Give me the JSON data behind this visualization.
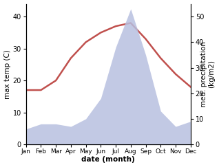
{
  "months": [
    "Jan",
    "Feb",
    "Mar",
    "Apr",
    "May",
    "Jun",
    "Jul",
    "Aug",
    "Sep",
    "Oct",
    "Nov",
    "Dec"
  ],
  "temperature": [
    17,
    17,
    20,
    27,
    32,
    35,
    37,
    38,
    33,
    27,
    22,
    18
  ],
  "precipitation": [
    6,
    8,
    8,
    7,
    10,
    18,
    38,
    53,
    35,
    13,
    7,
    9
  ],
  "temp_color": "#c0504d",
  "precip_fill_color": "#b8c0e0",
  "xlabel": "date (month)",
  "ylabel_left": "max temp (C)",
  "ylabel_right": "med. precipitation\n(kg/m2)",
  "ylim_left": [
    0,
    44
  ],
  "ylim_right": [
    0,
    55
  ],
  "yticks_left": [
    0,
    10,
    20,
    30,
    40
  ],
  "yticks_right": [
    0,
    10,
    20,
    30,
    40,
    50
  ],
  "background_color": "#ffffff",
  "temp_linewidth": 1.8,
  "font_size": 7.5
}
